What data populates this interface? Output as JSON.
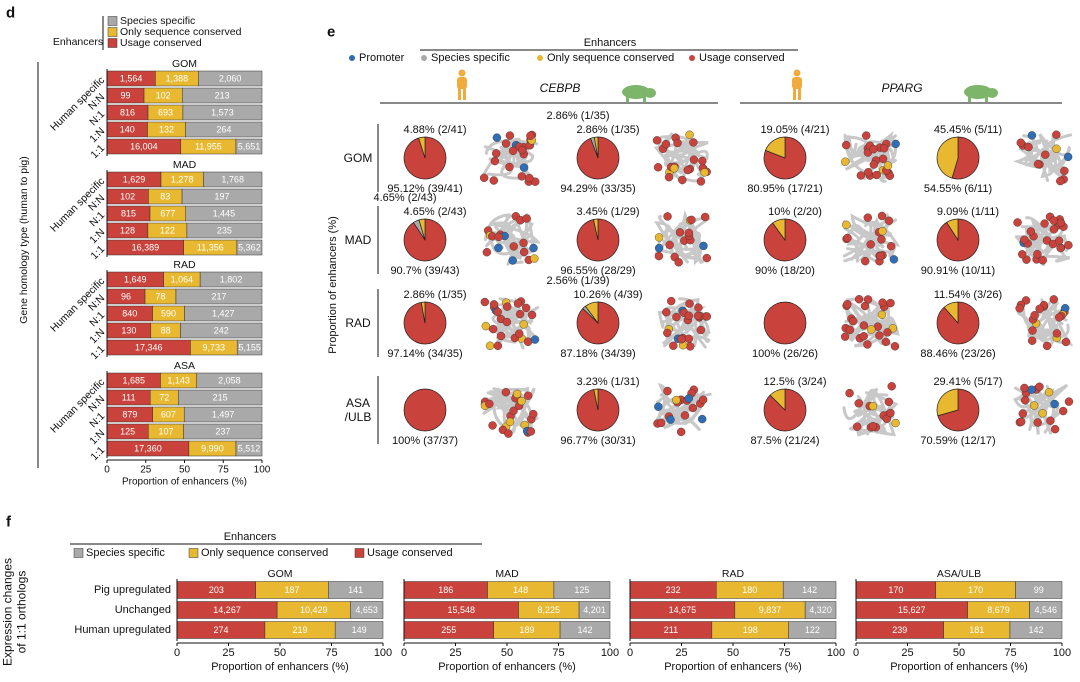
{
  "panel_labels": [
    "d",
    "e",
    "f"
  ],
  "chart_data": [
    {
      "type": "bar",
      "orientation": "horizontal",
      "stacking": "percent",
      "title": "GOM",
      "legend_title": "Enhancers",
      "ylabel": "Gene homology type (human to pig)",
      "categories": [
        "Human specific",
        "N:N",
        "N:1",
        "1:N",
        "1:1"
      ],
      "series": [
        {
          "name": "Usage conserved",
          "color": "#c9423b",
          "values": [
            1564,
            99,
            816,
            140,
            16004
          ],
          "value_labels": [
            "1,564",
            "99",
            "816",
            "140",
            "16,004"
          ]
        },
        {
          "name": "Only sequence conserved",
          "color": "#e8b930",
          "values": [
            1388,
            102,
            693,
            132,
            11955
          ],
          "value_labels": [
            "1,388",
            "102",
            "693",
            "132",
            "11,955"
          ]
        },
        {
          "name": "Species specific",
          "color": "#a9a9a9",
          "values": [
            2060,
            213,
            1573,
            264,
            5651
          ],
          "value_labels": [
            "2,060",
            "213",
            "1,573",
            "264",
            "5,651"
          ]
        }
      ],
      "xlim": [
        0,
        100
      ]
    },
    {
      "type": "bar",
      "orientation": "horizontal",
      "stacking": "percent",
      "title": "MAD",
      "categories": [
        "Human specific",
        "N:N",
        "N:1",
        "1:N",
        "1:1"
      ],
      "series": [
        {
          "name": "Usage conserved",
          "color": "#c9423b",
          "values": [
            1629,
            102,
            815,
            128,
            16389
          ],
          "value_labels": [
            "1,629",
            "102",
            "815",
            "128",
            "16,389"
          ]
        },
        {
          "name": "Only sequence conserved",
          "color": "#e8b930",
          "values": [
            1278,
            83,
            677,
            122,
            11356
          ],
          "value_labels": [
            "1,278",
            "83",
            "677",
            "122",
            "11,356"
          ]
        },
        {
          "name": "Species specific",
          "color": "#a9a9a9",
          "values": [
            1768,
            197,
            1445,
            235,
            5362
          ],
          "value_labels": [
            "1,768",
            "197",
            "1,445",
            "235",
            "5,362"
          ]
        }
      ],
      "xlim": [
        0,
        100
      ]
    },
    {
      "type": "bar",
      "orientation": "horizontal",
      "stacking": "percent",
      "title": "RAD",
      "categories": [
        "Human specific",
        "N:N",
        "N:1",
        "1:N",
        "1:1"
      ],
      "series": [
        {
          "name": "Usage conserved",
          "color": "#c9423b",
          "values": [
            1649,
            96,
            840,
            130,
            17346
          ],
          "value_labels": [
            "1,649",
            "96",
            "840",
            "130",
            "17,346"
          ]
        },
        {
          "name": "Only sequence conserved",
          "color": "#e8b930",
          "values": [
            1064,
            78,
            590,
            88,
            9733
          ],
          "value_labels": [
            "1,064",
            "78",
            "590",
            "88",
            "9,733"
          ]
        },
        {
          "name": "Species specific",
          "color": "#a9a9a9",
          "values": [
            1802,
            217,
            1427,
            242,
            5155
          ],
          "value_labels": [
            "1,802",
            "217",
            "1,427",
            "242",
            "5,155"
          ]
        }
      ],
      "xlim": [
        0,
        100
      ]
    },
    {
      "type": "bar",
      "orientation": "horizontal",
      "stacking": "percent",
      "title": "ASA",
      "categories": [
        "Human specific",
        "N:N",
        "N:1",
        "1:N",
        "1:1"
      ],
      "series": [
        {
          "name": "Usage conserved",
          "color": "#c9423b",
          "values": [
            1685,
            111,
            879,
            125,
            17360
          ],
          "value_labels": [
            "1,685",
            "111",
            "879",
            "125",
            "17,360"
          ]
        },
        {
          "name": "Only sequence conserved",
          "color": "#e8b930",
          "values": [
            1143,
            72,
            607,
            107,
            9990
          ],
          "value_labels": [
            "1,143",
            "72",
            "607",
            "107",
            "9,990"
          ]
        },
        {
          "name": "Species specific",
          "color": "#a9a9a9",
          "values": [
            2058,
            215,
            1497,
            237,
            5512
          ],
          "value_labels": [
            "2,058",
            "215",
            "1,497",
            "237",
            "5,512"
          ]
        }
      ],
      "xlim": [
        0,
        100
      ],
      "xticks": [
        0,
        25,
        50,
        75,
        100
      ],
      "xlabel": "Proportion of enhancers (%)"
    },
    {
      "type": "pie",
      "legend_title": "Enhancers",
      "ylabel": "Proportion of enhancers (%)",
      "genes": [
        "CEBPB",
        "PPARG"
      ],
      "rows": [
        "GOM",
        "MAD",
        "RAD",
        "ASA /ULB"
      ],
      "promoter": {
        "name": "Promoter",
        "color": "#2f6db5"
      },
      "series": [
        {
          "name": "Usage conserved",
          "color": "#c9423b"
        },
        {
          "name": "Species specific",
          "color": "#a9a9a9"
        },
        {
          "name": "Only sequence conserved",
          "color": "#e8b930"
        }
      ],
      "pies": [
        {
          "values": [
            95.12,
            null,
            4.88
          ],
          "value_labels": [
            "95.12% (39/41)",
            null,
            "4.88% (2/41)"
          ]
        },
        {
          "values": [
            94.29,
            2.86,
            2.86
          ],
          "value_labels": [
            "94.29% (33/35)",
            "2.86% (1/35)",
            "2.86% (1/35)"
          ]
        },
        {
          "values": [
            80.95,
            null,
            19.05
          ],
          "value_labels": [
            "80.95% (17/21)",
            null,
            "19.05% (4/21)"
          ]
        },
        {
          "values": [
            54.55,
            null,
            45.45
          ],
          "value_labels": [
            "54.55% (6/11)",
            null,
            "45.45% (5/11)"
          ]
        },
        {
          "values": [
            90.7,
            4.65,
            4.65
          ],
          "value_labels": [
            "90.7% (39/43)",
            "4.65% (2/43)",
            "4.65% (2/43)"
          ]
        },
        {
          "values": [
            96.55,
            null,
            3.45
          ],
          "value_labels": [
            "96.55% (28/29)",
            null,
            "3.45% (1/29)"
          ]
        },
        {
          "values": [
            90,
            null,
            10
          ],
          "value_labels": [
            "90% (18/20)",
            null,
            "10% (2/20)"
          ]
        },
        {
          "values": [
            90.91,
            null,
            9.09
          ],
          "value_labels": [
            "90.91% (10/11)",
            null,
            "9.09% (1/11)"
          ]
        },
        {
          "values": [
            97.14,
            null,
            2.86
          ],
          "value_labels": [
            "97.14% (34/35)",
            null,
            "2.86% (1/35)"
          ]
        },
        {
          "values": [
            87.18,
            2.56,
            10.26
          ],
          "value_labels": [
            "87.18% (34/39)",
            "2.56% (1/39)",
            "10.26% (4/39)"
          ]
        },
        {
          "values": [
            100,
            null,
            null
          ],
          "value_labels": [
            "100% (26/26)",
            null,
            null
          ]
        },
        {
          "values": [
            88.46,
            null,
            11.54
          ],
          "value_labels": [
            "88.46% (23/26)",
            null,
            "11.54% (3/26)"
          ]
        },
        {
          "values": [
            100,
            null,
            null
          ],
          "value_labels": [
            "100% (37/37)",
            null,
            null
          ]
        },
        {
          "values": [
            96.77,
            null,
            3.23
          ],
          "value_labels": [
            "96.77% (30/31)",
            null,
            "3.23% (1/31)"
          ]
        },
        {
          "values": [
            87.5,
            null,
            12.5
          ],
          "value_labels": [
            "87.5% (21/24)",
            null,
            "12.5% (3/24)"
          ]
        },
        {
          "values": [
            70.59,
            null,
            29.41
          ],
          "value_labels": [
            "70.59% (12/17)",
            null,
            "29.41% (5/17)"
          ]
        }
      ]
    },
    {
      "type": "bar",
      "orientation": "horizontal",
      "stacking": "percent",
      "title": "GOM",
      "legend_title": "Enhancers",
      "ylabel": "Expression changes of 1:1 orthologs",
      "categories": [
        "Pig upregulated",
        "Unchanged",
        "Human upregulated"
      ],
      "series": [
        {
          "name": "Usage conserved",
          "color": "#c9423b",
          "values": [
            203,
            14267,
            274
          ],
          "value_labels": [
            "203",
            "14,267",
            "274"
          ]
        },
        {
          "name": "Only sequence conserved",
          "color": "#e8b930",
          "values": [
            187,
            10429,
            219
          ],
          "value_labels": [
            "187",
            "10,429",
            "219"
          ]
        },
        {
          "name": "Species specific",
          "color": "#a9a9a9",
          "values": [
            141,
            4653,
            149
          ],
          "value_labels": [
            "141",
            "4,653",
            "149"
          ]
        }
      ],
      "xlim": [
        0,
        100
      ],
      "xticks": [
        0,
        25,
        50,
        75,
        100
      ],
      "xlabel": "Proportion of enhancers (%)"
    },
    {
      "type": "bar",
      "orientation": "horizontal",
      "stacking": "percent",
      "title": "MAD",
      "categories": [
        null,
        null,
        null
      ],
      "series": [
        {
          "name": "Usage conserved",
          "color": "#c9423b",
          "values": [
            186,
            15548,
            255
          ],
          "value_labels": [
            "186",
            "15,548",
            "255"
          ]
        },
        {
          "name": "Only sequence conserved",
          "color": "#e8b930",
          "values": [
            148,
            8225,
            189
          ],
          "value_labels": [
            "148",
            "8,225",
            "189"
          ]
        },
        {
          "name": "Species specific",
          "color": "#a9a9a9",
          "values": [
            125,
            4201,
            142
          ],
          "value_labels": [
            "125",
            "4,201",
            "142"
          ]
        }
      ],
      "xlim": [
        0,
        100
      ],
      "xticks": [
        0,
        25,
        50,
        75,
        100
      ],
      "xlabel": "Proportion of enhancers (%)"
    },
    {
      "type": "bar",
      "orientation": "horizontal",
      "stacking": "percent",
      "title": "RAD",
      "categories": [
        null,
        null,
        null
      ],
      "series": [
        {
          "name": "Usage conserved",
          "color": "#c9423b",
          "values": [
            232,
            14675,
            211
          ],
          "value_labels": [
            "232",
            "14,675",
            "211"
          ]
        },
        {
          "name": "Only sequence conserved",
          "color": "#e8b930",
          "values": [
            180,
            9837,
            198
          ],
          "value_labels": [
            "180",
            "9,837",
            "198"
          ]
        },
        {
          "name": "Species specific",
          "color": "#a9a9a9",
          "values": [
            142,
            4320,
            122
          ],
          "value_labels": [
            "142",
            "4,320",
            "122"
          ]
        }
      ],
      "xlim": [
        0,
        100
      ],
      "xticks": [
        0,
        25,
        50,
        75,
        100
      ],
      "xlabel": "Proportion of enhancers (%)"
    },
    {
      "type": "bar",
      "orientation": "horizontal",
      "stacking": "percent",
      "title": "ASA/ULB",
      "categories": [
        null,
        null,
        null
      ],
      "series": [
        {
          "name": "Usage conserved",
          "color": "#c9423b",
          "values": [
            170,
            15627,
            239
          ],
          "value_labels": [
            "170",
            "15,627",
            "239"
          ]
        },
        {
          "name": "Only sequence conserved",
          "color": "#e8b930",
          "values": [
            170,
            8679,
            181
          ],
          "value_labels": [
            "170",
            "8,679",
            "181"
          ]
        },
        {
          "name": "Species specific",
          "color": "#a9a9a9",
          "values": [
            99,
            4546,
            142
          ],
          "value_labels": [
            "99",
            "4,546",
            "142"
          ]
        }
      ],
      "xlim": [
        0,
        100
      ],
      "xticks": [
        0,
        25,
        50,
        75,
        100
      ],
      "xlabel": "Proportion of enhancers (%)"
    }
  ]
}
